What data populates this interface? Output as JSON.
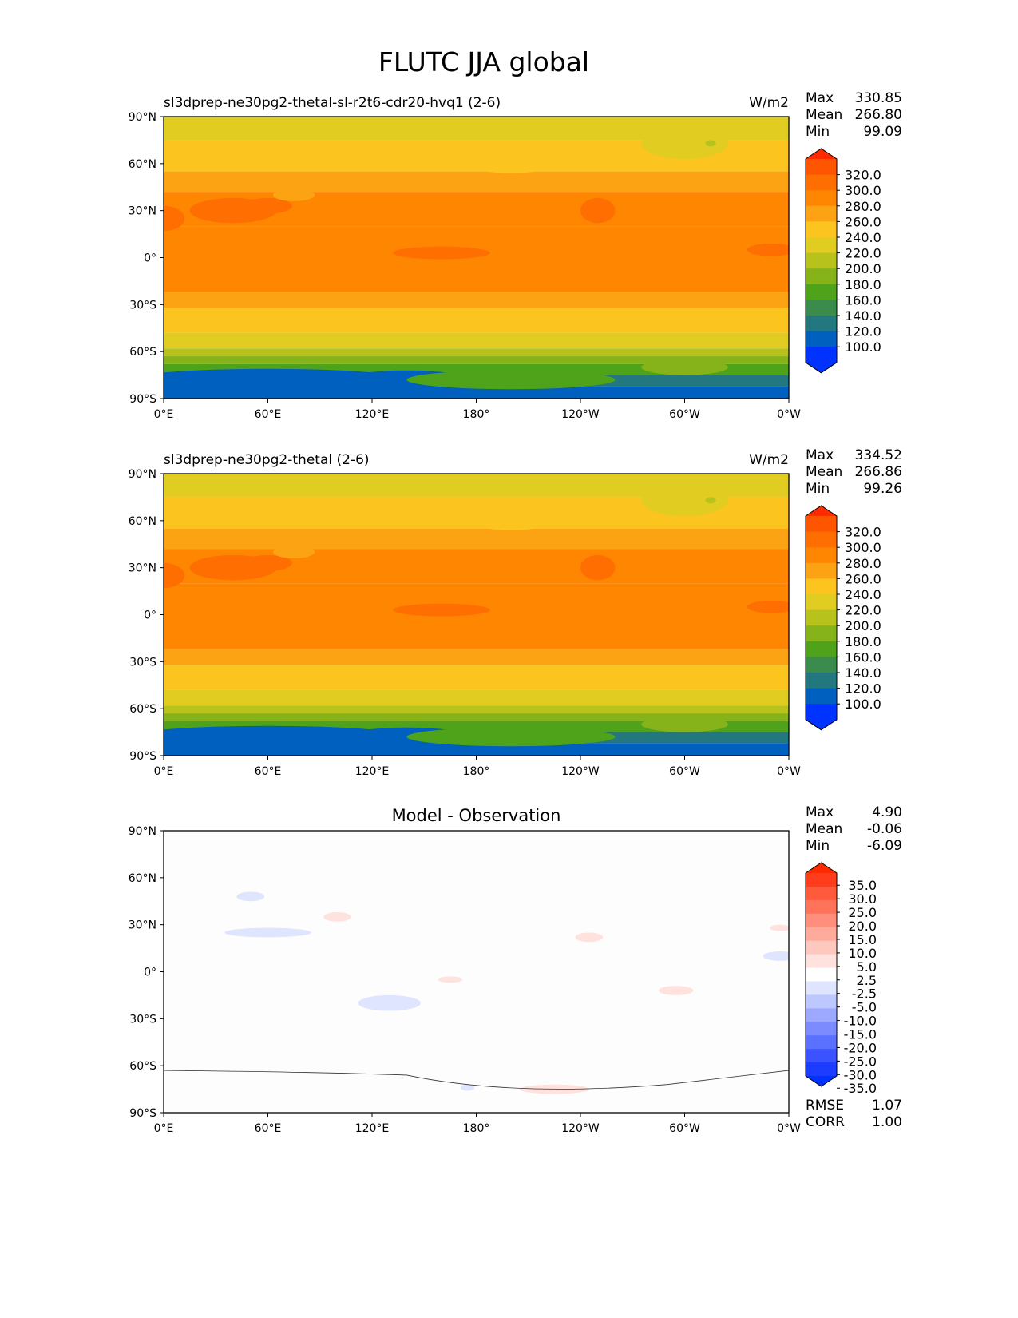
{
  "title": "FLUTC JJA global",
  "chart_data": {
    "type": "heatmap",
    "title": "FLUTC JJA global",
    "x_ticks": [
      "0°E",
      "60°E",
      "120°E",
      "180°",
      "120°W",
      "60°W",
      "0°W"
    ],
    "y_ticks": [
      "90°N",
      "60°N",
      "30°N",
      "0°",
      "30°S",
      "60°S",
      "90°S"
    ],
    "xlim": [
      0,
      360
    ],
    "ylim": [
      -90,
      90
    ],
    "panels": [
      {
        "name": "test",
        "title": "sl3dprep-ne30pg2-thetal-sl-r2t6-cdr20-hvq1 (2-6)",
        "units": "W/m2",
        "stats": {
          "max_label": "Max",
          "max": "330.85",
          "mean_label": "Mean",
          "mean": "266.80",
          "min_label": "Min",
          "min": "99.09"
        },
        "colorbar_labels": [
          "320.0",
          "300.0",
          "280.0",
          "260.0",
          "240.0",
          "220.0",
          "200.0",
          "180.0",
          "160.0",
          "140.0",
          "120.0",
          "100.0"
        ],
        "zonal_bands": [
          [
            90,
            75,
            230
          ],
          [
            75,
            55,
            250
          ],
          [
            55,
            42,
            265
          ],
          [
            42,
            20,
            290
          ],
          [
            20,
            -22,
            285
          ],
          [
            -22,
            -32,
            270
          ],
          [
            -32,
            -48,
            250
          ],
          [
            -48,
            -58,
            230
          ],
          [
            -58,
            -63,
            210
          ],
          [
            -63,
            -68,
            190
          ],
          [
            -68,
            -75,
            170
          ],
          [
            -75,
            -82,
            130
          ],
          [
            -82,
            -90,
            110
          ]
        ]
      },
      {
        "name": "reference",
        "title": "sl3dprep-ne30pg2-thetal (2-6)",
        "units": "W/m2",
        "stats": {
          "max_label": "Max",
          "max": "334.52",
          "mean_label": "Mean",
          "mean": "266.86",
          "min_label": "Min",
          "min": "99.26"
        },
        "colorbar_labels": [
          "320.0",
          "300.0",
          "280.0",
          "260.0",
          "240.0",
          "220.0",
          "200.0",
          "180.0",
          "160.0",
          "140.0",
          "120.0",
          "100.0"
        ],
        "zonal_bands": [
          [
            90,
            75,
            230
          ],
          [
            75,
            55,
            250
          ],
          [
            55,
            42,
            265
          ],
          [
            42,
            20,
            290
          ],
          [
            20,
            -22,
            285
          ],
          [
            -22,
            -32,
            270
          ],
          [
            -32,
            -48,
            250
          ],
          [
            -48,
            -58,
            230
          ],
          [
            -58,
            -63,
            210
          ],
          [
            -63,
            -68,
            190
          ],
          [
            -68,
            -75,
            170
          ],
          [
            -75,
            -82,
            130
          ],
          [
            -82,
            -90,
            110
          ]
        ]
      },
      {
        "name": "difference",
        "title": "Model - Observation",
        "units": "",
        "stats": {
          "max_label": "Max",
          "max": "4.90",
          "mean_label": "Mean",
          "mean": "-0.06",
          "min_label": "Min",
          "min": "-6.09"
        },
        "colorbar_labels": [
          "35.0",
          "30.0",
          "25.0",
          "20.0",
          "15.0",
          "10.0",
          "5.0",
          "2.5",
          "-2.5",
          "-5.0",
          "-10.0",
          "-15.0",
          "-20.0",
          "-25.0",
          "-30.0",
          "-35.0"
        ],
        "rmse_label": "RMSE",
        "rmse": "1.07",
        "corr_label": "CORR",
        "corr": "1.00"
      }
    ],
    "main_colors": [
      "#ff2a00",
      "#fe5500",
      "#fe6e00",
      "#fe8600",
      "#fca314",
      "#fbc41e",
      "#e1cc22",
      "#b8c21c",
      "#86b21a",
      "#4ea31a",
      "#3b8c4c",
      "#23777e",
      "#0060c0",
      "#0033ff"
    ],
    "diff_colors": [
      "#ff2a00",
      "#ff3d1c",
      "#ff5a3c",
      "#ff735a",
      "#ff8f7c",
      "#ffab9c",
      "#ffc8bf",
      "#ffe2de",
      "#ffffff",
      "#dfe4ff",
      "#bcc8ff",
      "#9ca9ff",
      "#7c8cff",
      "#5a70ff",
      "#3a52ff",
      "#1c3cff",
      "#0033ff"
    ]
  }
}
